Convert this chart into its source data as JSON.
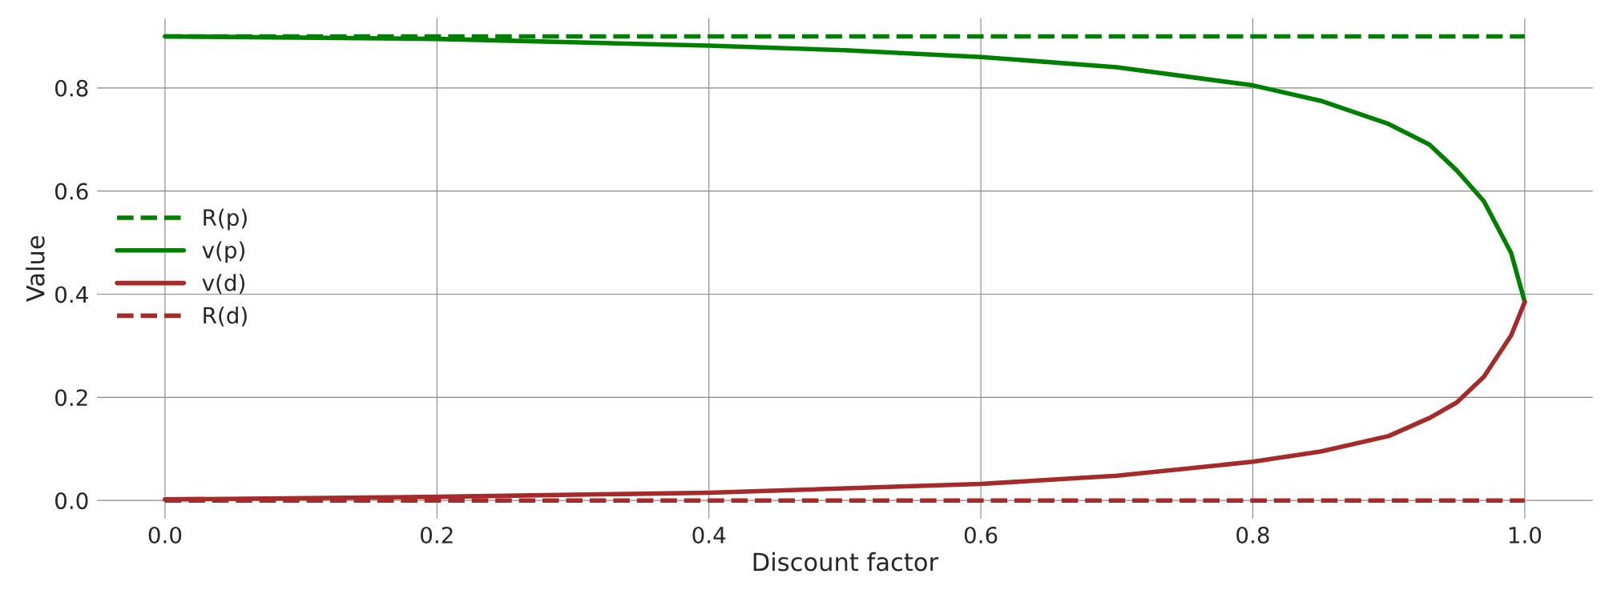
{
  "chart_data": {
    "type": "line",
    "xlabel": "Discount factor",
    "ylabel": "Value",
    "xlim": [
      -0.05,
      1.05
    ],
    "ylim": [
      -0.035,
      0.935
    ],
    "xticks": [
      {
        "value": 0,
        "label": "0.0"
      },
      0.2,
      0.4,
      0.6,
      0.8,
      {
        "value": 1,
        "label": "1.0"
      }
    ],
    "yticks": [
      {
        "value": 0,
        "label": "0.0"
      },
      0.2,
      0.4,
      0.6,
      0.8
    ],
    "grid": true,
    "legend": "left",
    "series": [
      {
        "name": "R(p)",
        "color": "#008000",
        "line_style": "dashed",
        "x": [
          0,
          1
        ],
        "values": [
          0.9,
          0.9
        ]
      },
      {
        "name": "v(p)",
        "color": "#008000",
        "line_style": "solid",
        "x": [
          0,
          0.2,
          0.4,
          0.5,
          0.6,
          0.7,
          0.8,
          0.85,
          0.9,
          0.93,
          0.95,
          0.97,
          0.99,
          1.0
        ],
        "values": [
          0.9,
          0.895,
          0.882,
          0.873,
          0.86,
          0.84,
          0.805,
          0.775,
          0.73,
          0.69,
          0.64,
          0.58,
          0.48,
          0.385
        ]
      },
      {
        "name": "v(d)",
        "color": "#a52a2a",
        "line_style": "solid",
        "x": [
          0,
          0.2,
          0.4,
          0.6,
          0.7,
          0.8,
          0.85,
          0.9,
          0.93,
          0.95,
          0.97,
          0.99,
          1.0
        ],
        "values": [
          0.002,
          0.007,
          0.015,
          0.032,
          0.048,
          0.075,
          0.095,
          0.125,
          0.16,
          0.19,
          0.24,
          0.32,
          0.385
        ]
      },
      {
        "name": "R(d)",
        "color": "#a52a2a",
        "line_style": "dashed",
        "x": [
          0,
          1
        ],
        "values": [
          0.0,
          0.0
        ]
      }
    ]
  }
}
